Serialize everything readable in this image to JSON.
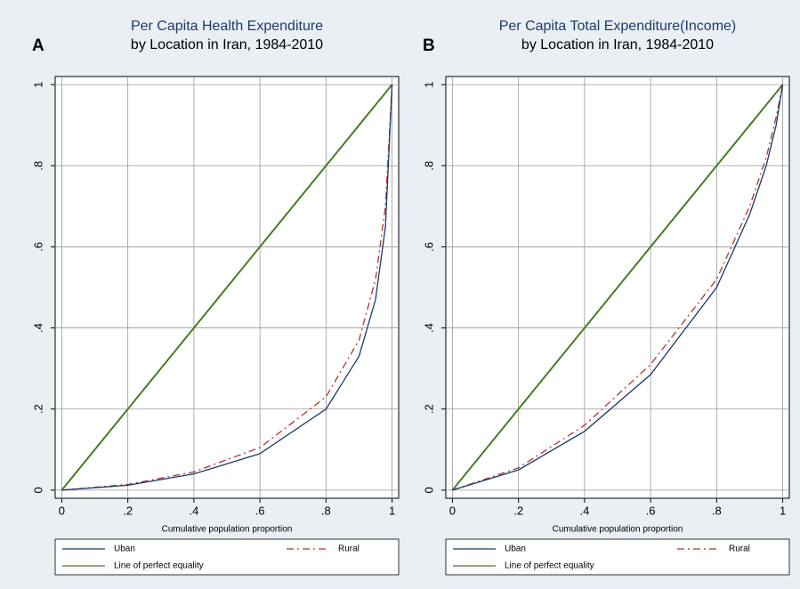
{
  "chart_data": [
    {
      "type": "line",
      "panel_label": "A",
      "title": "Per Capita Health Expenditure",
      "subtitle": "by Location in Iran, 1984-2010",
      "x_label": "Cumulative population proportion",
      "x": [
        0,
        0.2,
        0.4,
        0.6,
        0.8,
        0.9,
        0.95,
        0.98,
        1
      ],
      "series": [
        {
          "name": "Uban",
          "color": "#1a3a6b",
          "line_style": "solid",
          "values": [
            0,
            0.012,
            0.04,
            0.09,
            0.2,
            0.33,
            0.47,
            0.65,
            1
          ]
        },
        {
          "name": "Rural",
          "color": "#b03434",
          "line_style": "dashed",
          "values": [
            0,
            0.014,
            0.045,
            0.105,
            0.23,
            0.37,
            0.52,
            0.7,
            1
          ]
        },
        {
          "name": "Line of perfect equality",
          "color": "#4a7a28",
          "line_style": "solid",
          "values": [
            0,
            0.2,
            0.4,
            0.6,
            0.8,
            0.9,
            0.95,
            0.98,
            1
          ]
        }
      ],
      "xlim": [
        -0.02,
        1.02
      ],
      "ylim": [
        -0.02,
        1.02
      ],
      "xticks": [
        0,
        {
          "value": 0.2,
          "label": ".2"
        },
        {
          "value": 0.4,
          "label": ".4"
        },
        {
          "value": 0.6,
          "label": ".6"
        },
        {
          "value": 0.8,
          "label": ".8"
        },
        1
      ],
      "yticks": [
        0,
        {
          "value": 0.2,
          "label": ".2"
        },
        {
          "value": 0.4,
          "label": ".4"
        },
        {
          "value": 0.6,
          "label": ".6"
        },
        {
          "value": 0.8,
          "label": ".8"
        },
        1
      ],
      "grid": true,
      "legend": "bottom"
    },
    {
      "type": "line",
      "panel_label": "B",
      "title": "Per Capita Total Expenditure(Income)",
      "subtitle": "by Location in Iran, 1984-2010",
      "x_label": "Cumulative population proportion",
      "x": [
        0,
        0.2,
        0.4,
        0.6,
        0.8,
        0.9,
        0.95,
        0.98,
        1
      ],
      "series": [
        {
          "name": "Uban",
          "color": "#1a3a6b",
          "line_style": "solid",
          "values": [
            0,
            0.05,
            0.145,
            0.285,
            0.5,
            0.68,
            0.8,
            0.9,
            1
          ]
        },
        {
          "name": "Rural",
          "color": "#b03434",
          "line_style": "dashed",
          "values": [
            0,
            0.055,
            0.16,
            0.31,
            0.52,
            0.7,
            0.82,
            0.92,
            1
          ]
        },
        {
          "name": "Line of perfect equality",
          "color": "#4a7a28",
          "line_style": "solid",
          "values": [
            0,
            0.2,
            0.4,
            0.6,
            0.8,
            0.9,
            0.95,
            0.98,
            1
          ]
        }
      ],
      "xlim": [
        -0.02,
        1.02
      ],
      "ylim": [
        -0.02,
        1.02
      ],
      "xticks": [
        0,
        {
          "value": 0.2,
          "label": ".2"
        },
        {
          "value": 0.4,
          "label": ".4"
        },
        {
          "value": 0.6,
          "label": ".6"
        },
        {
          "value": 0.8,
          "label": ".8"
        },
        1
      ],
      "yticks": [
        0,
        {
          "value": 0.2,
          "label": ".2"
        },
        {
          "value": 0.4,
          "label": ".4"
        },
        {
          "value": 0.6,
          "label": ".6"
        },
        {
          "value": 0.8,
          "label": ".8"
        },
        1
      ],
      "grid": true,
      "legend": "bottom"
    }
  ]
}
